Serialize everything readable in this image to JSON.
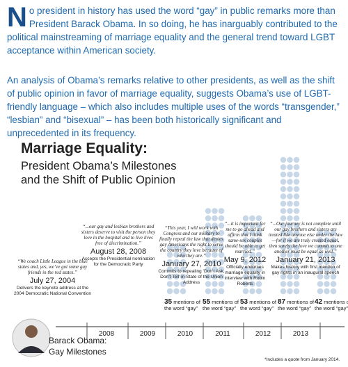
{
  "intro": {
    "drop_cap": "N",
    "text": "o president in history has used the word “gay” in public remarks more than President Barack Obama. In so doing, he has inarguably contributed to the political mainstreaming of marriage equality and the general trend toward LGBT acceptance within American society."
  },
  "analysis": "An analysis of Obama’s remarks relative to other presidents, as well as the shift of public opinion in favor of marriage equality, suggests Obama’s use of LGBT-friendly language – which also includes multiple uses of the words “transgender,” “lesbian” and “bisexual” – has been both historically significant and unprecedented in its frequency.",
  "infographic": {
    "title": "Marriage Equality:",
    "subtitle": "President Obama’s Milestones and the Shift of Public Opinion",
    "milestones": [
      {
        "quote": "“We coach Little League in the blue states and, yes, we’ve got some gay friends in the red states.”",
        "date": "July 27, 2004",
        "description": "Delivers the keynote address at the 2004 Democratic National Convention"
      },
      {
        "quote": "“...our gay and lesbian brothers and sisters deserve to visit the person they love in the hospital and to live lives free of discrimination.”",
        "date": "August 28, 2008",
        "description": "Accepts the Presidential nomination for the Democratic Party"
      },
      {
        "quote": "“This year, I will work with Congress and our military to finally repeal the law that denies gay Americans the right to serve the country they love because of who they are.”",
        "date": "January 27, 2010",
        "description": "Commits to repealing ‘Don’t Ask, Don’t Tell’ in State of the Union Address"
      },
      {
        "quote": "“...it is important for me to go ahead and affirm that I think same-sex couples should be able to get married.”",
        "date": "May 9, 2012",
        "description": "Officially endorses marriage equality in interview with Robin Roberts"
      },
      {
        "quote": "“...Our journey is not complete until our gay brothers and sisters are treated like anyone else under the law—for if we are truly created equal, then surely the love we commit to one another must be equal as well.”",
        "date": "January 21, 2013",
        "description": "Makes history with first mention of gay rights in an inaugural speech"
      }
    ],
    "mentions": [
      {
        "count": 35,
        "label": "mentions of the word “gay”"
      },
      {
        "count": 55,
        "label": "mentions of the word “gay”"
      },
      {
        "count": 53,
        "label": "mentions of the word “gay”"
      },
      {
        "count": 87,
        "label": "mentions of the word “gay”"
      },
      {
        "count": 42,
        "label": "mentions of the word “gay”*"
      }
    ],
    "years": [
      "2008",
      "2009",
      "2010",
      "2011",
      "2012",
      "2013"
    ],
    "caption": "Barack Obama: Gay Milestones",
    "footnote": "*Includes a quote from January 2014."
  }
}
